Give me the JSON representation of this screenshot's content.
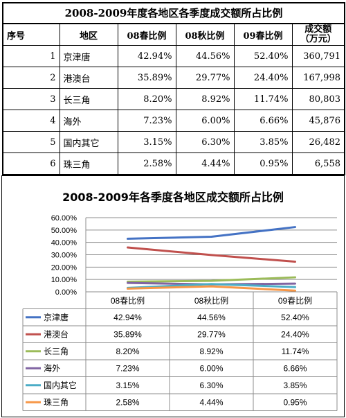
{
  "table": {
    "title": "2008-2009年度各地区各季度成交额所占比例",
    "headers": [
      "序号",
      "地区",
      "08春比例",
      "08秋比例",
      "09春比例",
      "成交额\n（万元）"
    ],
    "header_line1": "成交额",
    "header_line2": "（万元）",
    "rows": [
      {
        "idx": "1",
        "region": "京津唐",
        "c1": "42.94%",
        "c2": "44.56%",
        "c3": "52.40%",
        "amount": "360,791"
      },
      {
        "idx": "2",
        "region": "港澳台",
        "c1": "35.89%",
        "c2": "29.77%",
        "c3": "24.40%",
        "amount": "167,998"
      },
      {
        "idx": "3",
        "region": "长三角",
        "c1": "8.20%",
        "c2": "8.92%",
        "c3": "11.74%",
        "amount": "80,803"
      },
      {
        "idx": "4",
        "region": "海外",
        "c1": "7.23%",
        "c2": "6.00%",
        "c3": "6.66%",
        "amount": "45,876"
      },
      {
        "idx": "5",
        "region": "国内其它",
        "c1": "3.15%",
        "c2": "6.30%",
        "c3": "3.85%",
        "amount": "26,482"
      },
      {
        "idx": "6",
        "region": "珠三角",
        "c1": "2.58%",
        "c2": "4.44%",
        "c3": "0.95%",
        "amount": "6,558"
      }
    ]
  },
  "chart_data": {
    "type": "line",
    "title": "2008-2009年各季度各地区成交额所占比例",
    "categories": [
      "08春比例",
      "08秋比例",
      "09春比例"
    ],
    "ylim": [
      0,
      60
    ],
    "yticks": [
      "0.00%",
      "10.00%",
      "20.00%",
      "30.00%",
      "40.00%",
      "50.00%",
      "60.00%"
    ],
    "grid": true,
    "legend": "data-table-left",
    "series": [
      {
        "name": "京津唐",
        "color": "#4472C4",
        "values": [
          42.94,
          44.56,
          52.4
        ],
        "labels": [
          "42.94%",
          "44.56%",
          "52.40%"
        ]
      },
      {
        "name": "港澳台",
        "color": "#C0504D",
        "values": [
          35.89,
          29.77,
          24.4
        ],
        "labels": [
          "35.89%",
          "29.77%",
          "24.40%"
        ]
      },
      {
        "name": "长三角",
        "color": "#9BBB59",
        "values": [
          8.2,
          8.92,
          11.74
        ],
        "labels": [
          "8.20%",
          "8.92%",
          "11.74%"
        ]
      },
      {
        "name": "海外",
        "color": "#8064A2",
        "values": [
          7.23,
          6.0,
          6.66
        ],
        "labels": [
          "7.23%",
          "6.00%",
          "6.66%"
        ]
      },
      {
        "name": "国内其它",
        "color": "#4BACC6",
        "values": [
          3.15,
          6.3,
          3.85
        ],
        "labels": [
          "3.15%",
          "6.30%",
          "3.85%"
        ]
      },
      {
        "name": "珠三角",
        "color": "#F79646",
        "values": [
          2.58,
          4.44,
          0.95
        ],
        "labels": [
          "2.58%",
          "4.44%",
          "0.95%"
        ]
      }
    ]
  }
}
